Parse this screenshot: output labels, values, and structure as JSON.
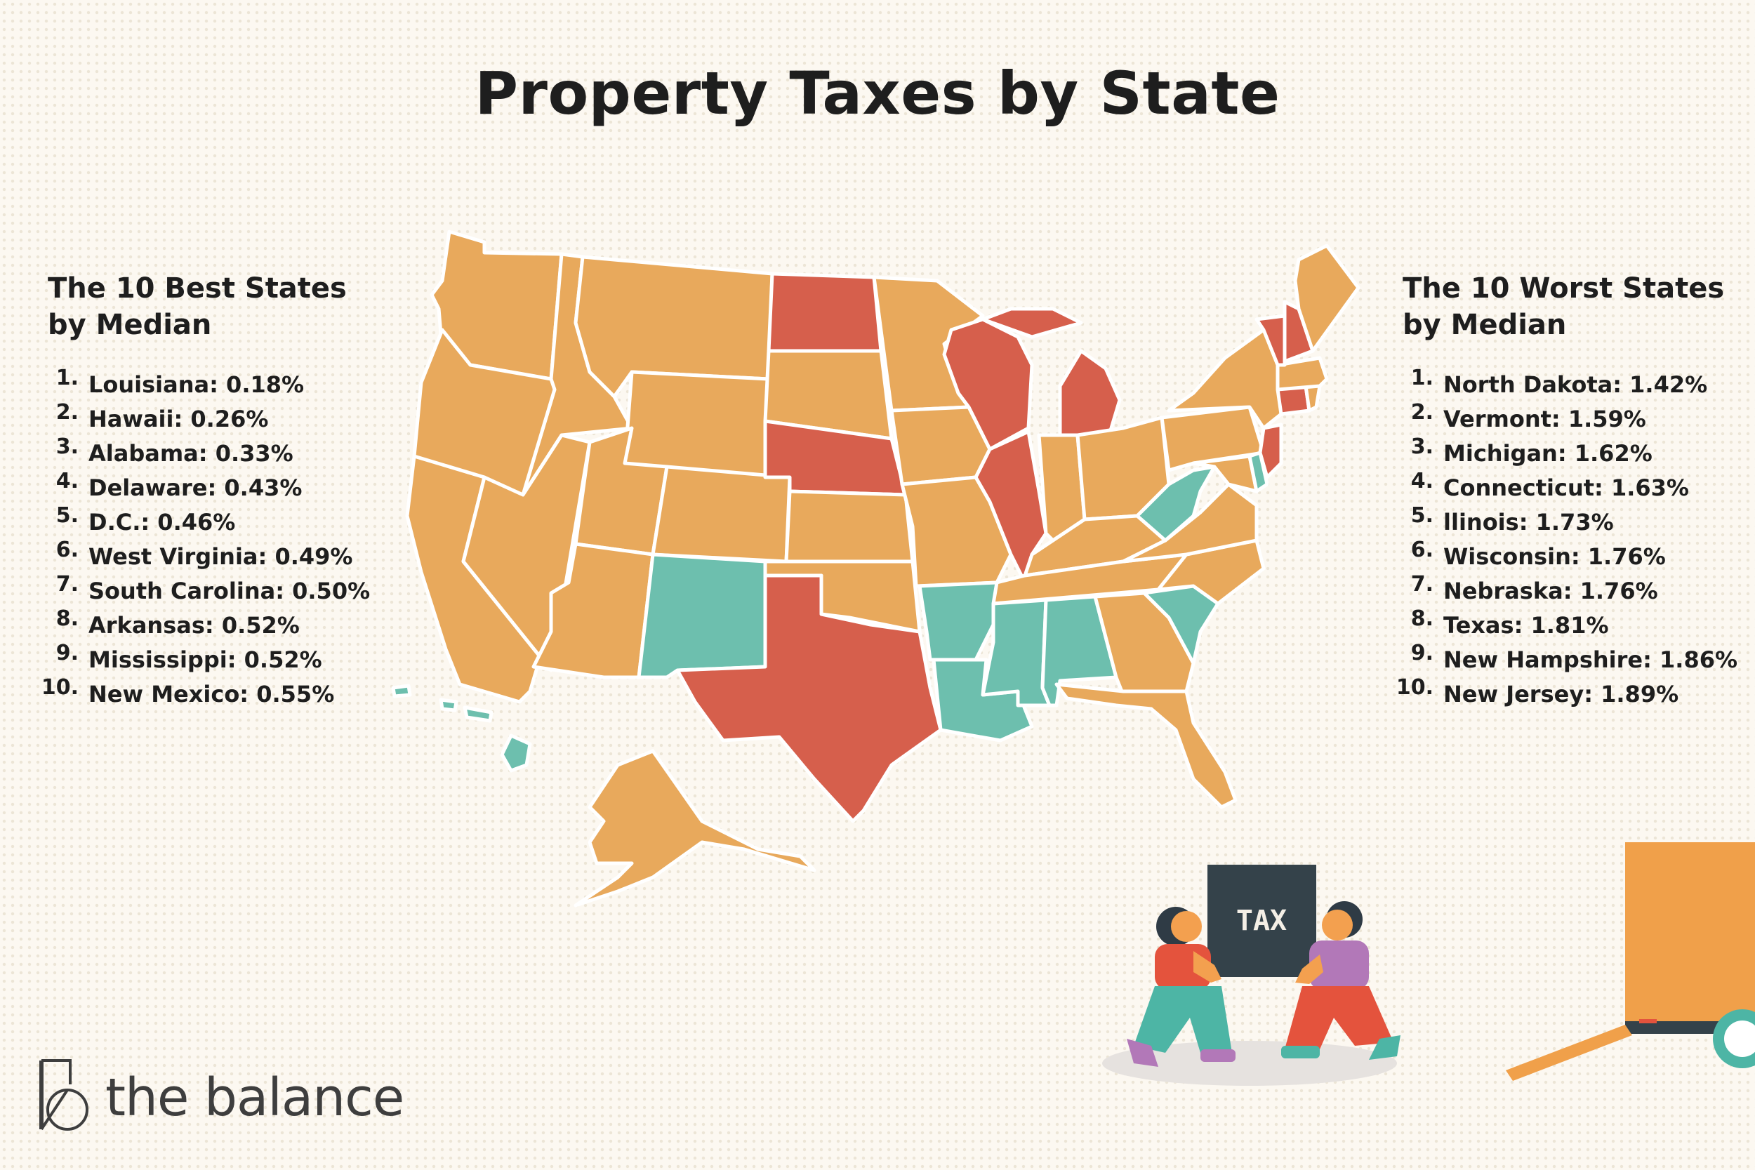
{
  "title": "Property Taxes by State",
  "best": {
    "heading_line1": "The 10 Best States",
    "heading_line2": "by Median",
    "items": [
      {
        "rank": "1.",
        "text": "Louisiana: 0.18%"
      },
      {
        "rank": "2.",
        "text": "Hawaii: 0.26%"
      },
      {
        "rank": "3.",
        "text": "Alabama: 0.33%"
      },
      {
        "rank": "4.",
        "text": "Delaware: 0.43%"
      },
      {
        "rank": "5.",
        "text": "D.C.: 0.46%"
      },
      {
        "rank": "6.",
        "text": "West Virginia: 0.49%"
      },
      {
        "rank": "7.",
        "text": "South Carolina: 0.50%"
      },
      {
        "rank": "8.",
        "text": "Arkansas: 0.52%"
      },
      {
        "rank": "9.",
        "text": "Mississippi: 0.52%"
      },
      {
        "rank": "10.",
        "text": "New Mexico: 0.55%"
      }
    ]
  },
  "worst": {
    "heading_line1": "The 10 Worst States",
    "heading_line2": "by Median",
    "items": [
      {
        "rank": "1.",
        "text": "North Dakota: 1.42%"
      },
      {
        "rank": "2.",
        "text": "Vermont: 1.59%"
      },
      {
        "rank": "3.",
        "text": "Michigan: 1.62%"
      },
      {
        "rank": "4.",
        "text": "Connecticut: 1.63%"
      },
      {
        "rank": "5.",
        "text": "llinois: 1.73%"
      },
      {
        "rank": "6.",
        "text": "Wisconsin: 1.76%"
      },
      {
        "rank": "7.",
        "text": "Nebraska: 1.76%"
      },
      {
        "rank": "8.",
        "text": "Texas: 1.81%"
      },
      {
        "rank": "9.",
        "text": "New Hampshire: 1.86%"
      },
      {
        "rank": "10.",
        "text": "New Jersey: 1.89%"
      }
    ]
  },
  "map": {
    "colors": {
      "best": "#6dbfae",
      "worst": "#d65f4c",
      "other": "#e8a95c",
      "border": "#ffffff"
    },
    "best_states": [
      "Louisiana",
      "Hawaii",
      "Alabama",
      "Delaware",
      "D.C.",
      "West Virginia",
      "South Carolina",
      "Arkansas",
      "Mississippi",
      "New Mexico"
    ],
    "worst_states": [
      "North Dakota",
      "Vermont",
      "Michigan",
      "Connecticut",
      "Illinois",
      "Wisconsin",
      "Nebraska",
      "Texas",
      "New Hampshire",
      "New Jersey"
    ]
  },
  "illustration": {
    "box_label": "TAX"
  },
  "brand": {
    "name": "the balance",
    "icon": "balance-logo-icon"
  }
}
